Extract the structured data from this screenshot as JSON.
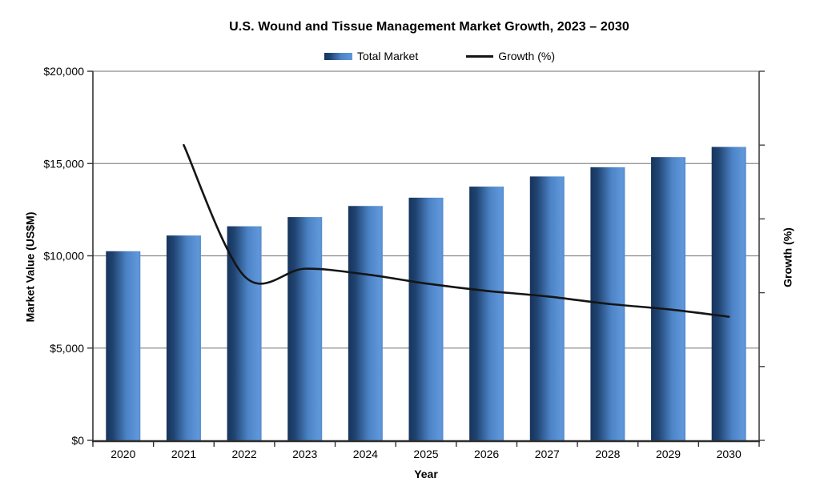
{
  "chart_data": {
    "type": "combo",
    "title": "U.S. Wound and Tissue Management Market Growth, 2023 – 2030",
    "xlabel": "Year",
    "ylabel_left": "Market Value (US$M)",
    "ylabel_right": "Growth (%)",
    "categories": [
      "2020",
      "2021",
      "2022",
      "2023",
      "2024",
      "2025",
      "2026",
      "2027",
      "2028",
      "2029",
      "2030"
    ],
    "series": [
      {
        "name": "Total Market",
        "type": "bar",
        "axis": "left",
        "values": [
          10250,
          11100,
          11600,
          12100,
          12700,
          13150,
          13750,
          14300,
          14800,
          15350,
          15900
        ]
      },
      {
        "name": "Growth (%)",
        "type": "line",
        "axis": "right",
        "smoothed": true,
        "values": [
          null,
          16.0,
          8.9,
          9.3,
          9.0,
          8.5,
          8.1,
          7.8,
          7.4,
          7.1,
          6.7
        ]
      }
    ],
    "left_axis": {
      "min": 0,
      "max": 20000,
      "tick_step": 5000,
      "tick_labels": [
        "$0",
        "$5,000",
        "$10,000",
        "$15,000",
        "$20,000"
      ]
    },
    "right_axis": {
      "min": 0,
      "max": 20,
      "tick_step": 4,
      "tick_labels": [],
      "labels_hidden": true
    },
    "grid": true,
    "legend_position": "top",
    "colors": {
      "bar_gradient": [
        "#16345c",
        "#1f4370",
        "#4c83c6",
        "#6097da",
        "#558cce"
      ],
      "line": "#151515",
      "gridline": "#8c8c8c",
      "axis": "#333333",
      "text": "#000000"
    }
  },
  "legend": {
    "items": [
      {
        "label": "Total Market",
        "swatch": "bar-gradient"
      },
      {
        "label": "Growth (%)",
        "swatch": "line"
      }
    ]
  }
}
